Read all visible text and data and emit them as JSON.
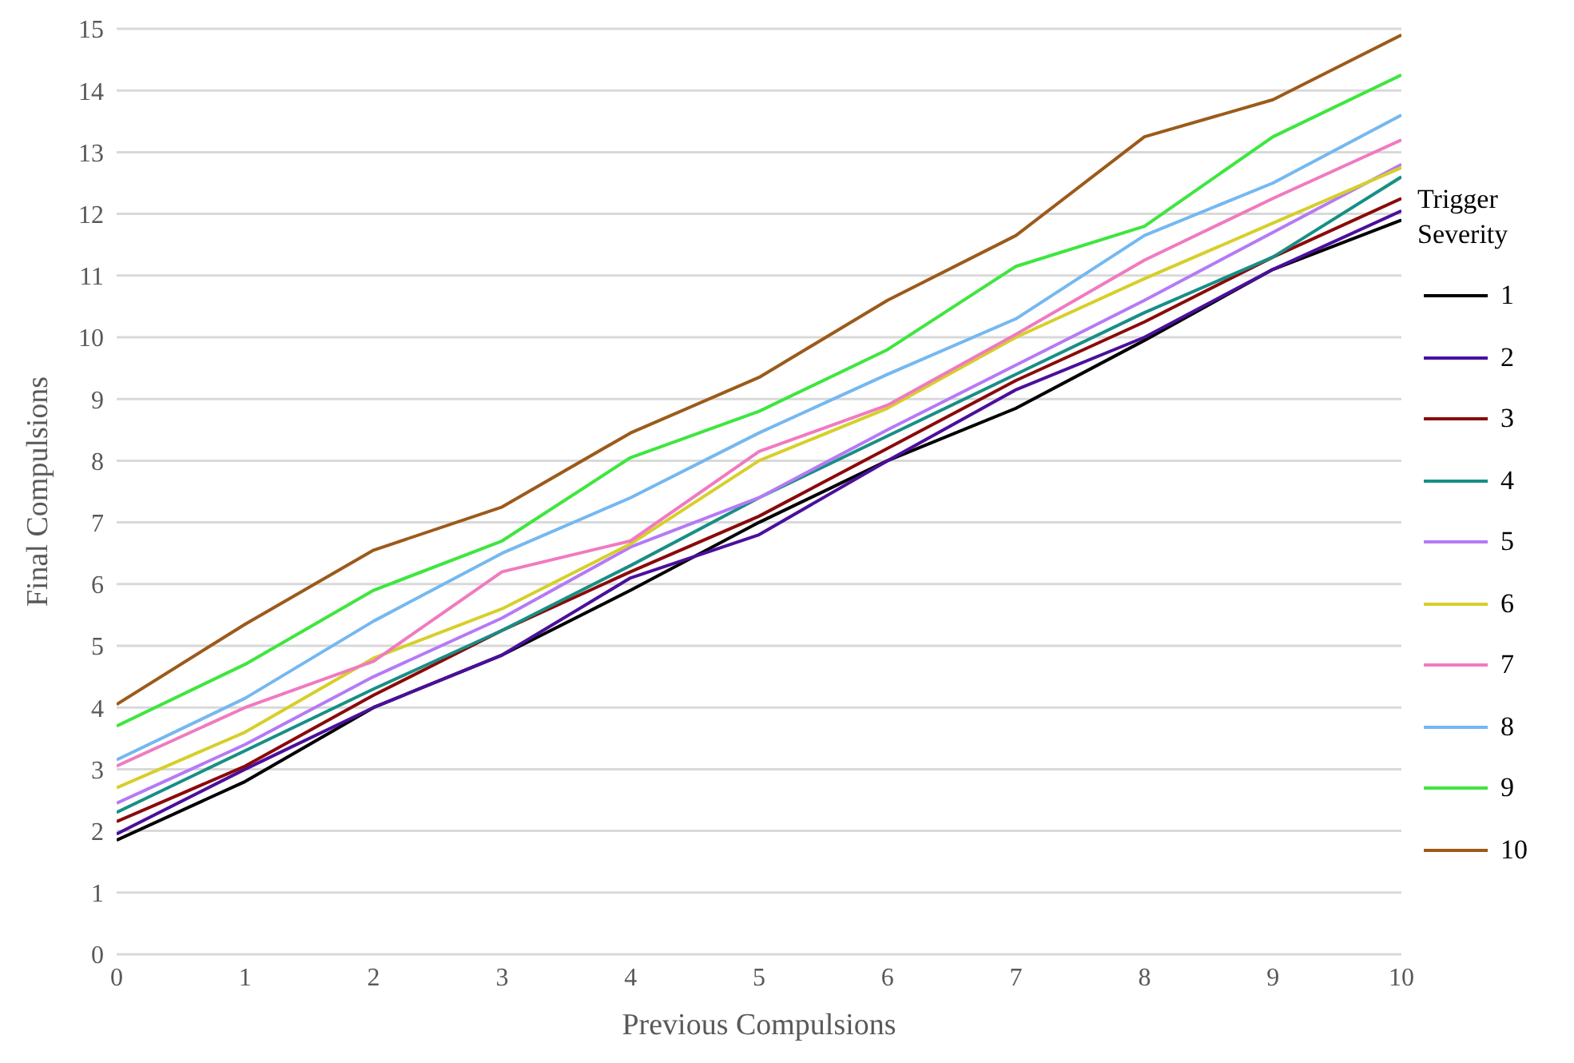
{
  "chart_data": {
    "type": "line",
    "xlabel": "Previous Compulsions",
    "ylabel": "Final Compulsions",
    "legend_title": "Trigger Severity",
    "x": [
      0,
      1,
      2,
      3,
      4,
      5,
      6,
      7,
      8,
      9,
      10
    ],
    "xlim": [
      0,
      10
    ],
    "xticks": [
      0,
      1,
      2,
      3,
      4,
      5,
      6,
      7,
      8,
      9,
      10
    ],
    "ylim": [
      0,
      15
    ],
    "yticks": [
      0,
      1,
      2,
      3,
      4,
      5,
      6,
      7,
      8,
      9,
      10,
      11,
      12,
      13,
      14,
      15
    ],
    "grid": "y",
    "legend": "right",
    "marker": "none",
    "line_style": "solid",
    "series": [
      {
        "name": "1",
        "color": "#000000",
        "values": [
          1.85,
          2.8,
          4.0,
          4.85,
          5.9,
          7.0,
          8.0,
          8.85,
          9.95,
          11.1,
          11.9
        ]
      },
      {
        "name": "2",
        "color": "#4b0f9c",
        "values": [
          1.95,
          3.0,
          4.0,
          4.85,
          6.1,
          6.8,
          8.0,
          9.15,
          10.0,
          11.1,
          12.05
        ]
      },
      {
        "name": "3",
        "color": "#8b0a0a",
        "values": [
          2.15,
          3.05,
          4.2,
          5.25,
          6.2,
          7.1,
          8.2,
          9.3,
          10.25,
          11.3,
          12.25
        ]
      },
      {
        "name": "4",
        "color": "#178f85",
        "values": [
          2.3,
          3.3,
          4.3,
          5.25,
          6.3,
          7.4,
          8.4,
          9.4,
          10.4,
          11.3,
          12.6
        ]
      },
      {
        "name": "5",
        "color": "#b57af5",
        "values": [
          2.45,
          3.4,
          4.5,
          5.45,
          6.6,
          7.4,
          8.5,
          9.55,
          10.6,
          11.7,
          12.8
        ]
      },
      {
        "name": "6",
        "color": "#d6cf2a",
        "values": [
          2.7,
          3.6,
          4.8,
          5.6,
          6.65,
          8.0,
          8.85,
          10.0,
          10.95,
          11.85,
          12.75
        ]
      },
      {
        "name": "7",
        "color": "#f07ac0",
        "values": [
          3.05,
          4.0,
          4.75,
          6.2,
          6.7,
          8.15,
          8.9,
          10.05,
          11.25,
          12.25,
          13.2
        ]
      },
      {
        "name": "8",
        "color": "#75b8f0",
        "values": [
          3.15,
          4.15,
          5.4,
          6.5,
          7.4,
          8.45,
          9.4,
          10.3,
          11.65,
          12.5,
          13.6
        ]
      },
      {
        "name": "9",
        "color": "#3ee63e",
        "values": [
          3.7,
          4.7,
          5.9,
          6.7,
          8.05,
          8.8,
          9.8,
          11.15,
          11.8,
          13.25,
          14.25
        ]
      },
      {
        "name": "10",
        "color": "#9c5a1a",
        "values": [
          4.05,
          5.35,
          6.55,
          7.25,
          8.45,
          9.35,
          10.6,
          11.65,
          13.25,
          13.85,
          14.9
        ]
      }
    ]
  }
}
